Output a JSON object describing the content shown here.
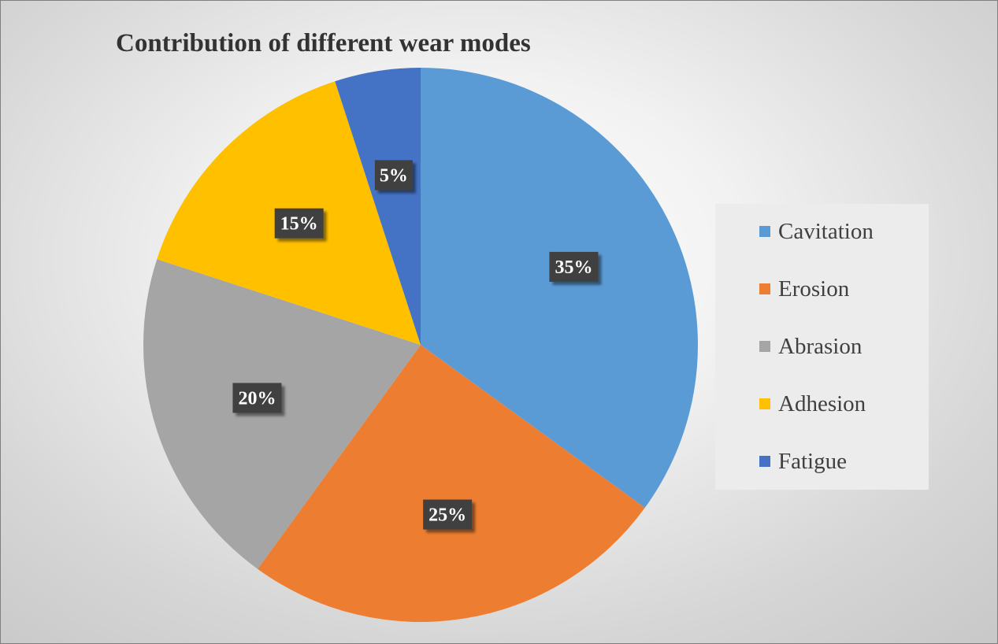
{
  "chart_data": {
    "type": "pie",
    "title": "Contribution of different wear modes",
    "categories": [
      "Cavitation",
      "Erosion",
      "Abrasion",
      "Adhesion",
      "Fatigue"
    ],
    "values": [
      35,
      25,
      20,
      15,
      5
    ],
    "data_labels": [
      "35%",
      "25%",
      "20%",
      "15%",
      "5%"
    ],
    "colors": [
      "#5b9bd5",
      "#ed7d31",
      "#a5a5a5",
      "#ffc000",
      "#4472c4"
    ],
    "start_angle": "12 o'clock",
    "direction": "clockwise",
    "legend_position": "right"
  }
}
